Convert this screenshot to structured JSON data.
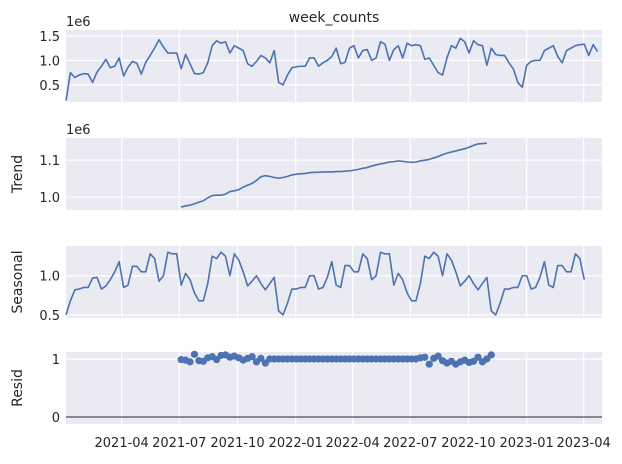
{
  "chart_data": {
    "type": "line",
    "title": "week_counts",
    "x_type": "date",
    "x_range": [
      "2021-01-03",
      "2023-04-30"
    ],
    "x_ticks": [
      "2021-04",
      "2021-07",
      "2021-10",
      "2022-01",
      "2022-04",
      "2022-07",
      "2022-10",
      "2023-01",
      "2023-04"
    ],
    "grid": true,
    "panels": [
      {
        "name": "observed",
        "title": "week_counts",
        "ylabel": "",
        "offset_text": "1e6",
        "yticks": [
          "0.5",
          "1.0",
          "1.5"
        ],
        "ytick_values": [
          0.5,
          1.0,
          1.5
        ],
        "ylim": [
          0.15,
          1.62
        ],
        "style": "line",
        "series": [
          {
            "start": "2021-01-03",
            "values": [
              0.18,
              0.75,
              0.65,
              0.7,
              0.73,
              0.72,
              0.55,
              0.76,
              0.88,
              1.02,
              0.85,
              0.88,
              1.05,
              0.68,
              0.86,
              0.98,
              0.94,
              0.72,
              0.96,
              1.1,
              1.25,
              1.42,
              1.27,
              1.15,
              1.15,
              1.15,
              0.83,
              1.12,
              0.93,
              0.73,
              0.72,
              0.75,
              0.95,
              1.3,
              1.4,
              1.35,
              1.38,
              1.15,
              1.3,
              1.25,
              1.2,
              0.93,
              0.88,
              0.98,
              1.1,
              1.05,
              0.95,
              1.2,
              0.55,
              0.5,
              0.7,
              0.85,
              0.87,
              0.88,
              0.88,
              1.05,
              1.05,
              0.88,
              0.95,
              1.0,
              1.08,
              1.25,
              0.93,
              0.96,
              1.25,
              1.3,
              1.05,
              1.2,
              1.22,
              1.0,
              1.05,
              1.38,
              1.33,
              1.0,
              1.22,
              1.3,
              1.05,
              1.35,
              1.3,
              1.32,
              1.3,
              1.02,
              1.05,
              0.9,
              0.75,
              0.7,
              1.05,
              1.3,
              1.25,
              1.45,
              1.38,
              1.15,
              1.4,
              1.32,
              1.3,
              0.9,
              1.25,
              1.12,
              1.1,
              1.1,
              0.95,
              0.82,
              0.55,
              0.45,
              0.9,
              0.98,
              1.0,
              1.0,
              1.2,
              1.25,
              1.3,
              1.08,
              0.95,
              1.2,
              1.25,
              1.3,
              1.32,
              1.33,
              1.1,
              1.32,
              1.18
            ]
          }
        ]
      },
      {
        "name": "trend",
        "ylabel": "Trend",
        "offset_text": "1e6",
        "yticks": [
          "1.0",
          "1.1"
        ],
        "ytick_values": [
          1.0,
          1.1
        ],
        "ylim": [
          0.965,
          1.16
        ],
        "style": "line",
        "series": [
          {
            "start": "2021-07-04",
            "values": [
              0.973,
              0.976,
              0.978,
              0.982,
              0.986,
              0.99,
              0.998,
              1.004,
              1.005,
              1.005,
              1.008,
              1.015,
              1.017,
              1.02,
              1.027,
              1.032,
              1.037,
              1.045,
              1.055,
              1.058,
              1.056,
              1.053,
              1.051,
              1.053,
              1.056,
              1.06,
              1.062,
              1.063,
              1.064,
              1.066,
              1.067,
              1.067,
              1.068,
              1.068,
              1.068,
              1.069,
              1.069,
              1.07,
              1.071,
              1.073,
              1.075,
              1.078,
              1.08,
              1.084,
              1.087,
              1.09,
              1.092,
              1.095,
              1.096,
              1.098,
              1.097,
              1.095,
              1.094,
              1.095,
              1.098,
              1.1,
              1.102,
              1.106,
              1.11,
              1.115,
              1.119,
              1.122,
              1.125,
              1.128,
              1.131,
              1.135,
              1.14,
              1.144,
              1.145,
              1.146
            ]
          }
        ]
      },
      {
        "name": "seasonal",
        "ylabel": "Seasonal",
        "yticks": [
          "0.5",
          "1.0"
        ],
        "ytick_values": [
          0.5,
          1.0
        ],
        "ylim": [
          0.46,
          1.38
        ],
        "style": "line",
        "series": [
          {
            "start": "2021-01-03",
            "values": [
              0.5,
              0.68,
              0.82,
              0.83,
              0.85,
              0.85,
              0.97,
              0.98,
              0.83,
              0.87,
              0.95,
              1.05,
              1.18,
              0.85,
              0.88,
              1.12,
              1.12,
              1.05,
              1.05,
              1.28,
              1.22,
              0.93,
              1.0,
              1.3,
              1.28,
              1.28,
              0.88,
              1.03,
              0.95,
              0.78,
              0.68,
              0.68,
              0.9,
              1.25,
              1.22,
              1.3,
              1.25,
              1.0,
              1.28,
              1.2,
              1.05,
              0.87,
              0.93,
              1.0,
              0.9,
              0.82,
              0.9,
              0.98,
              0.55,
              0.5,
              0.65,
              0.83,
              0.83,
              0.85,
              0.85,
              1.0,
              1.0,
              0.83,
              0.85,
              0.98,
              1.18,
              0.88,
              0.85,
              1.13,
              1.13,
              1.05,
              1.05,
              1.28,
              1.22,
              0.95,
              1.0,
              1.3,
              1.28,
              1.28,
              0.88,
              1.03,
              0.95,
              0.78,
              0.68,
              0.68,
              0.9,
              1.25,
              1.22,
              1.3,
              1.25,
              1.0,
              1.28,
              1.2,
              1.05,
              0.87,
              0.93,
              1.0,
              0.9,
              0.82,
              0.9,
              0.98,
              0.55,
              0.5,
              0.65,
              0.83,
              0.83,
              0.85,
              0.85,
              1.0,
              1.0,
              0.83,
              0.85,
              0.98,
              1.18,
              0.88,
              0.85,
              1.13,
              1.13,
              1.05,
              1.05,
              1.28,
              1.22,
              0.95
            ]
          }
        ]
      },
      {
        "name": "resid",
        "ylabel": "Resid",
        "yticks": [
          "0",
          "1"
        ],
        "ytick_values": [
          0,
          1
        ],
        "ylim": [
          -0.12,
          1.12
        ],
        "style": "scatter",
        "baseline": 0,
        "series": [
          {
            "start": "2021-07-04",
            "values": [
              0.99,
              0.98,
              0.95,
              1.08,
              0.97,
              0.96,
              1.02,
              1.04,
              0.99,
              1.06,
              1.07,
              1.03,
              1.05,
              1.02,
              0.98,
              1.01,
              1.04,
              0.95,
              1.01,
              0.93,
              1.0,
              1.0,
              1.0,
              1.0,
              1.0,
              1.0,
              1.0,
              1.0,
              1.0,
              1.0,
              1.0,
              1.0,
              1.0,
              1.0,
              1.0,
              1.0,
              1.0,
              1.0,
              1.0,
              1.0,
              1.0,
              1.0,
              1.0,
              1.0,
              1.0,
              1.0,
              1.0,
              1.0,
              1.0,
              1.0,
              1.0,
              1.0,
              1.0,
              1.0,
              1.02,
              1.03,
              0.91,
              1.01,
              1.05,
              0.97,
              0.93,
              0.96,
              0.91,
              0.95,
              0.98,
              0.94,
              0.96,
              1.03,
              0.95,
              1.0,
              1.07
            ]
          }
        ]
      }
    ]
  }
}
